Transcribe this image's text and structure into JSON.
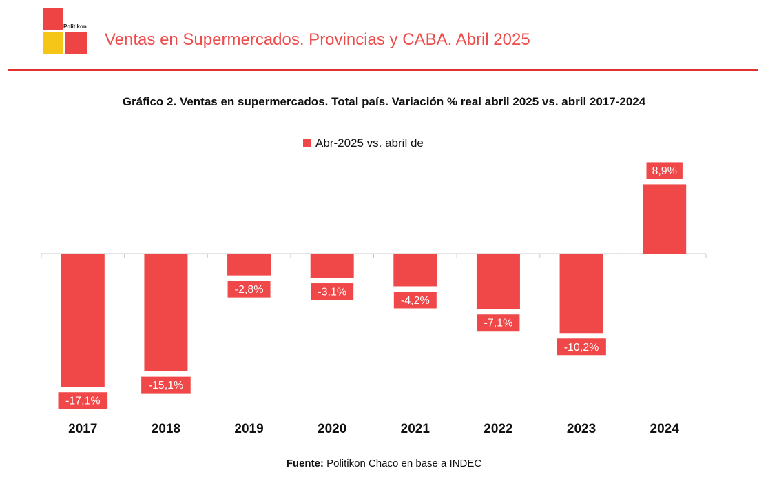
{
  "header": {
    "logo_text": "Politikon",
    "title": "Ventas en Supermercados. Provincias y CABA. Abril 2025"
  },
  "colors": {
    "bar": "#f04848",
    "header_text": "#ee4b4b",
    "rule": "#e03030"
  },
  "chart_data": {
    "type": "bar",
    "title": "Gráfico 2. Ventas en supermercados. Total país. Variación % real abril 2025 vs. abril 2017-2024",
    "categories": [
      "2017",
      "2018",
      "2019",
      "2020",
      "2021",
      "2022",
      "2023",
      "2024"
    ],
    "series": [
      {
        "name": "Abr-2025 vs. abril de",
        "values": [
          -17.1,
          -15.1,
          -2.8,
          -3.1,
          -4.2,
          -7.1,
          -10.2,
          8.9
        ],
        "labels": [
          "-17,1%",
          "-15,1%",
          "-2,8%",
          "-3,1%",
          "-4,2%",
          "-7,1%",
          "-10,2%",
          "8,9%"
        ]
      }
    ],
    "ylim": [
      -20,
      10
    ],
    "legend": "top-center",
    "grid": false
  },
  "source": {
    "label": "Fuente:",
    "text": " Politikon Chaco en base a INDEC"
  }
}
